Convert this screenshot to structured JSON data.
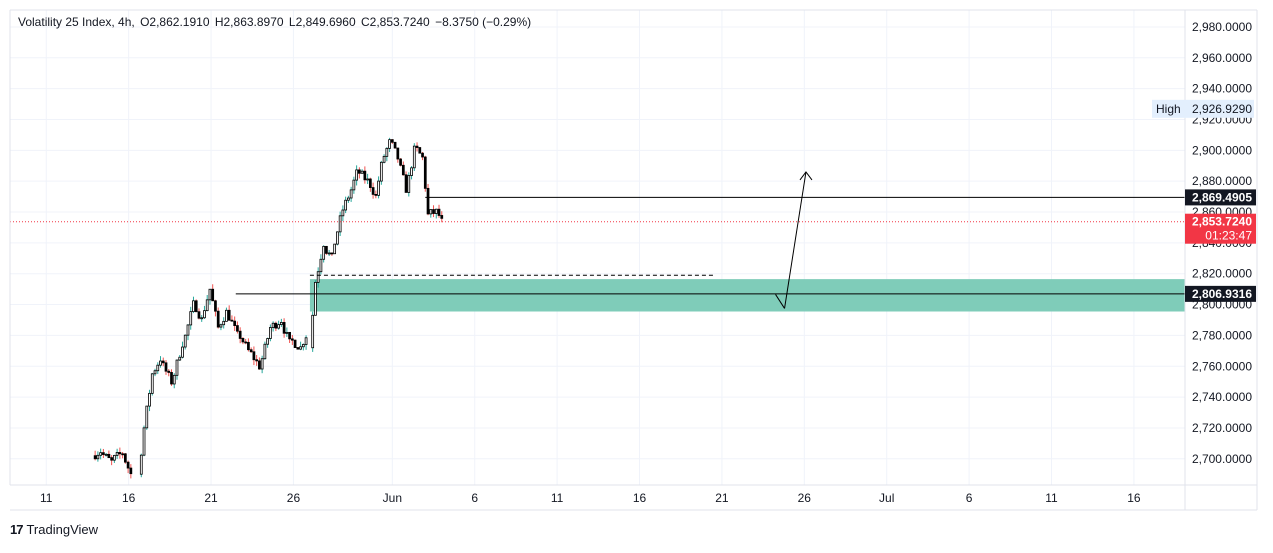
{
  "legend": {
    "symbol": "Volatility 25 Index, 4h,",
    "open": "O2,862.1910",
    "high": "H2,863.8970",
    "low": "L2,849.6960",
    "close": "C2,853.7240",
    "change": "−8.3750 (−0.29%)"
  },
  "brand": {
    "logo_text": "17",
    "name": "TradingView",
    "icon": "tradingview-logo-icon"
  },
  "colors": {
    "up": "#26a69a",
    "down": "#ef5350",
    "candle": "#000000",
    "zone": "#7fccb9",
    "last_price": "#f23645",
    "grid": "#f0f3fa",
    "price_line": "#f23645"
  },
  "chart_data": {
    "type": "candlestick",
    "title": "Volatility 25 Index",
    "interval": "4h",
    "y_ticks": [
      "2,980.0000",
      "2,960.0000",
      "2,940.0000",
      "2,920.0000",
      "2,900.0000",
      "2,880.0000",
      "2,860.0000",
      "2,840.0000",
      "2,820.0000",
      "2,800.0000",
      "2,780.0000",
      "2,760.0000",
      "2,740.0000",
      "2,720.0000",
      "2,700.0000"
    ],
    "y_tick_values": [
      2980,
      2960,
      2940,
      2920,
      2900,
      2880,
      2860,
      2840,
      2820,
      2800,
      2780,
      2760,
      2740,
      2720,
      2700
    ],
    "ylim": [
      2683,
      2991
    ],
    "x_ticks": [
      "11",
      "16",
      "21",
      "26",
      "Jun",
      "6",
      "11",
      "16",
      "21",
      "26",
      "Jul",
      "6",
      "11",
      "16"
    ],
    "x_tick_days": [
      11,
      16,
      21,
      26,
      32,
      37,
      42,
      47,
      52,
      57,
      62,
      67,
      72,
      77
    ],
    "xlim_days": [
      8.8,
      80.1
    ],
    "grid": true,
    "high_label": {
      "label": "High",
      "value": "2,926.9290"
    },
    "last_price": {
      "value": "2,853.7240",
      "countdown": "01:23:47",
      "y": 2853.724
    },
    "levels": [
      {
        "value": "2,869.4905",
        "y": 2869.4905,
        "from_day": 34.0
      },
      {
        "value": "2,806.9316",
        "y": 2806.9316,
        "from_day": 22.5
      }
    ],
    "zone": {
      "y_top": 2816.5,
      "y_bottom": 2795.5,
      "from_day": 27.0
    },
    "dashed_line": {
      "y": 2819.0,
      "from_day": 27.0,
      "to_day": 51.5
    },
    "arrow": {
      "points": [
        [
          55.8,
          2797.5
        ],
        [
          57.1,
          2886.0
        ]
      ]
    },
    "segments": [
      {
        "start_day": 13.8,
        "start": 2702,
        "dir": 1,
        "waypoints": [
          [
            14.3,
            2705
          ],
          [
            15.0,
            2698
          ],
          [
            15.6,
            2704
          ],
          [
            16.1,
            2690
          ]
        ]
      },
      {
        "start_day": 16.6,
        "start": 2690,
        "dir": 1,
        "waypoints": [
          [
            17.0,
            2720
          ],
          [
            17.5,
            2755
          ],
          [
            18.0,
            2765
          ],
          [
            18.6,
            2750
          ],
          [
            19.2,
            2775
          ],
          [
            20.0,
            2800
          ],
          [
            20.5,
            2790
          ],
          [
            21.0,
            2810
          ],
          [
            21.5,
            2785
          ],
          [
            22.0,
            2795
          ],
          [
            22.6,
            2780
          ],
          [
            23.3,
            2770
          ],
          [
            24.0,
            2760
          ],
          [
            24.6,
            2785
          ],
          [
            25.3,
            2790
          ],
          [
            25.8,
            2775
          ],
          [
            26.4,
            2772
          ],
          [
            26.8,
            2780
          ]
        ]
      },
      {
        "start_day": 27.0,
        "start": 2772,
        "dir": 1,
        "waypoints": [
          [
            27.4,
            2815
          ],
          [
            27.9,
            2840
          ],
          [
            28.4,
            2830
          ],
          [
            28.8,
            2855
          ],
          [
            29.4,
            2870
          ],
          [
            29.9,
            2885
          ],
          [
            30.5,
            2880
          ],
          [
            31.0,
            2870
          ],
          [
            31.4,
            2890
          ],
          [
            31.9,
            2905
          ],
          [
            32.3,
            2895
          ],
          [
            32.8,
            2875
          ],
          [
            33.4,
            2900
          ],
          [
            33.8,
            2895
          ],
          [
            34.2,
            2858
          ],
          [
            34.6,
            2860
          ],
          [
            35.0,
            2853.7
          ]
        ]
      }
    ]
  }
}
